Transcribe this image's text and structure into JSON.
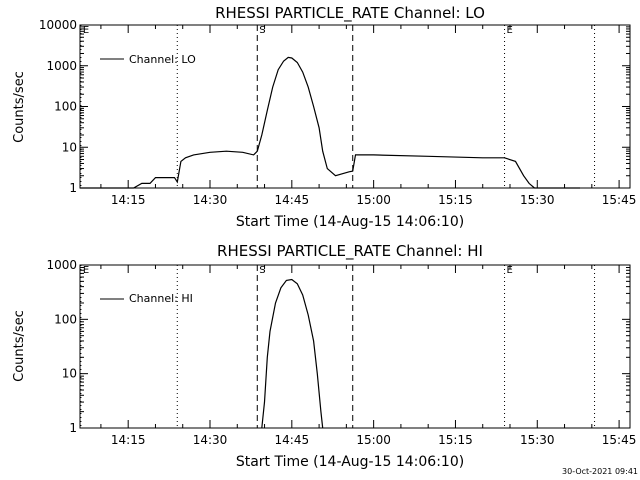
{
  "footer_timestamp": "30-Oct-2021 09:41",
  "colors": {
    "background": "#ffffff",
    "foreground": "#000000"
  },
  "chart_data": [
    {
      "type": "line",
      "title": "RHESSI  PARTICLE_RATE  Channel: LO",
      "xlabel": "Start Time (14-Aug-15 14:06:10)",
      "ylabel": "Counts/sec",
      "y_scale": "log",
      "ylim": [
        1,
        10000
      ],
      "xlim": [
        "14:06:10",
        "15:47:00"
      ],
      "x_ticks": [
        "14:15",
        "14:30",
        "14:45",
        "15:00",
        "15:15",
        "15:30",
        "15:45"
      ],
      "y_ticks": [
        "1",
        "10",
        "100",
        "1000",
        "10000"
      ],
      "legend": {
        "position": "top-left",
        "entries": [
          "Channel: LO"
        ]
      },
      "markers": [
        {
          "label": "E",
          "time": "14:06:20",
          "style": "dotted"
        },
        {
          "label": "",
          "time": "14:24:00",
          "style": "dotted"
        },
        {
          "label": "S",
          "time": "14:38:40",
          "style": "dashed"
        },
        {
          "label": "",
          "time": "14:56:10",
          "style": "dashed"
        },
        {
          "label": "E",
          "time": "15:24:00",
          "style": "dotted"
        },
        {
          "label": "",
          "time": "15:40:30",
          "style": "dotted"
        }
      ],
      "series": [
        {
          "name": "Channel: LO",
          "points": [
            [
              "14:06:10",
              1
            ],
            [
              "14:16:00",
              1
            ],
            [
              "14:17:30",
              1.3
            ],
            [
              "14:19:00",
              1.3
            ],
            [
              "14:20:00",
              1.8
            ],
            [
              "14:23:30",
              1.8
            ],
            [
              "14:24:00",
              1.4
            ],
            [
              "14:24:40",
              4.5
            ],
            [
              "14:25:30",
              5.5
            ],
            [
              "14:27:00",
              6.5
            ],
            [
              "14:30:00",
              7.5
            ],
            [
              "14:33:00",
              8
            ],
            [
              "14:36:00",
              7.5
            ],
            [
              "14:38:00",
              6.5
            ],
            [
              "14:38:40",
              8
            ],
            [
              "14:39:30",
              20
            ],
            [
              "14:40:30",
              80
            ],
            [
              "14:41:30",
              300
            ],
            [
              "14:42:30",
              800
            ],
            [
              "14:43:30",
              1300
            ],
            [
              "14:44:20",
              1600
            ],
            [
              "14:45:00",
              1550
            ],
            [
              "14:46:00",
              1200
            ],
            [
              "14:47:00",
              700
            ],
            [
              "14:48:00",
              300
            ],
            [
              "14:49:00",
              100
            ],
            [
              "14:50:00",
              30
            ],
            [
              "14:50:40",
              8
            ],
            [
              "14:51:30",
              3
            ],
            [
              "14:53:00",
              2
            ],
            [
              "14:55:30",
              2.5
            ],
            [
              "14:56:10",
              2.6
            ],
            [
              "14:56:40",
              6.5
            ],
            [
              "15:00:00",
              6.5
            ],
            [
              "15:10:00",
              6
            ],
            [
              "15:20:00",
              5.5
            ],
            [
              "15:24:00",
              5.5
            ],
            [
              "15:26:00",
              4.5
            ],
            [
              "15:27:30",
              2
            ],
            [
              "15:28:30",
              1.3
            ],
            [
              "15:29:30",
              1
            ],
            [
              "15:37:50",
              1
            ]
          ]
        }
      ]
    },
    {
      "type": "line",
      "title": "RHESSI  PARTICLE_RATE  Channel: HI",
      "xlabel": "Start Time (14-Aug-15 14:06:10)",
      "ylabel": "Counts/sec",
      "y_scale": "log",
      "ylim": [
        1,
        1000
      ],
      "xlim": [
        "14:06:10",
        "15:47:00"
      ],
      "x_ticks": [
        "14:15",
        "14:30",
        "14:45",
        "15:00",
        "15:15",
        "15:30",
        "15:45"
      ],
      "y_ticks": [
        "1",
        "10",
        "100",
        "1000"
      ],
      "legend": {
        "position": "top-left",
        "entries": [
          "Channel: HI"
        ]
      },
      "markers": [
        {
          "label": "E",
          "time": "14:06:20",
          "style": "dotted"
        },
        {
          "label": "",
          "time": "14:24:00",
          "style": "dotted"
        },
        {
          "label": "S",
          "time": "14:38:40",
          "style": "dashed"
        },
        {
          "label": "",
          "time": "14:56:10",
          "style": "dashed"
        },
        {
          "label": "E",
          "time": "15:24:00",
          "style": "dotted"
        },
        {
          "label": "",
          "time": "15:40:30",
          "style": "dotted"
        }
      ],
      "series": [
        {
          "name": "Channel: HI",
          "points": [
            [
              "14:39:30",
              1
            ],
            [
              "14:40:00",
              3
            ],
            [
              "14:40:30",
              20
            ],
            [
              "14:41:00",
              60
            ],
            [
              "14:42:00",
              200
            ],
            [
              "14:43:00",
              380
            ],
            [
              "14:44:00",
              520
            ],
            [
              "14:45:00",
              540
            ],
            [
              "14:46:00",
              450
            ],
            [
              "14:47:00",
              280
            ],
            [
              "14:48:00",
              120
            ],
            [
              "14:49:00",
              40
            ],
            [
              "14:49:40",
              10
            ],
            [
              "14:50:20",
              2
            ],
            [
              "14:50:40",
              1
            ]
          ]
        }
      ]
    }
  ]
}
